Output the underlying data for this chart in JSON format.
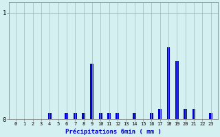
{
  "hours": [
    0,
    1,
    2,
    3,
    4,
    5,
    6,
    7,
    8,
    9,
    10,
    11,
    12,
    13,
    14,
    15,
    16,
    17,
    18,
    19,
    20,
    21,
    22,
    23
  ],
  "values": [
    0,
    0,
    0,
    0,
    0.06,
    0,
    0.06,
    0.06,
    0.06,
    0.52,
    0.06,
    0.06,
    0.06,
    0,
    0.06,
    0,
    0.06,
    0.1,
    0.68,
    0.55,
    0.1,
    0.1,
    0,
    0.06
  ],
  "bar_color": "#0000dd",
  "bg_color": "#d4f0f0",
  "grid_color": "#a0b8b8",
  "axis_color": "#888888",
  "xlabel": "Précipitations 6min ( mm )",
  "xlabel_color": "#0000cc",
  "ylim": [
    0,
    1.1
  ],
  "bar_width": 0.4
}
